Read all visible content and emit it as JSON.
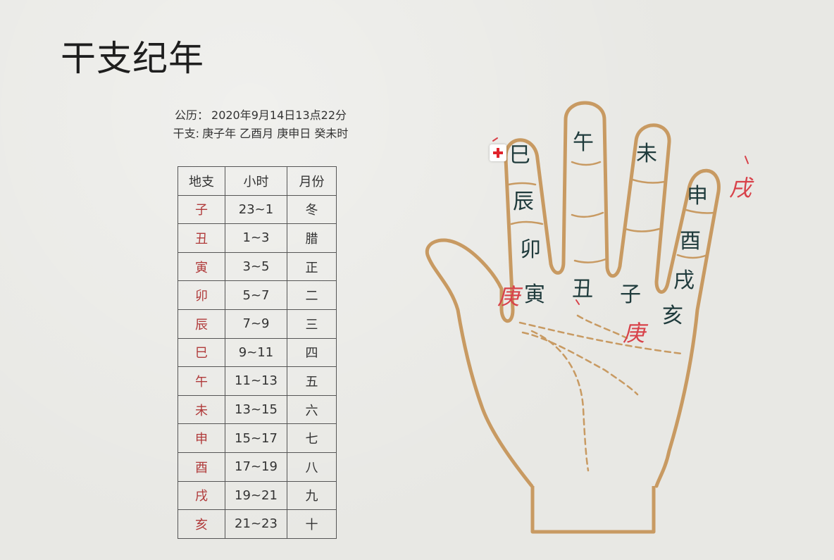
{
  "title": "干支纪年",
  "info": {
    "solar_label": "公历：",
    "solar_value": "2020年9月14日13点22分",
    "ganzhi_label": "干支:",
    "ganzhi_value": "庚子年 乙酉月 庚申日 癸未时"
  },
  "table": {
    "headers": [
      "地支",
      "小时",
      "月份"
    ],
    "rows": [
      {
        "zhi": "子",
        "hours": "23~1",
        "month": "冬"
      },
      {
        "zhi": "丑",
        "hours": "1~3",
        "month": "腊"
      },
      {
        "zhi": "寅",
        "hours": "3~5",
        "month": "正"
      },
      {
        "zhi": "卯",
        "hours": "5~7",
        "month": "二"
      },
      {
        "zhi": "辰",
        "hours": "7~9",
        "month": "三"
      },
      {
        "zhi": "巳",
        "hours": "9~11",
        "month": "四"
      },
      {
        "zhi": "午",
        "hours": "11~13",
        "month": "五"
      },
      {
        "zhi": "未",
        "hours": "13~15",
        "month": "六"
      },
      {
        "zhi": "申",
        "hours": "15~17",
        "month": "七"
      },
      {
        "zhi": "酉",
        "hours": "17~19",
        "month": "八"
      },
      {
        "zhi": "戌",
        "hours": "19~21",
        "month": "九"
      },
      {
        "zhi": "亥",
        "hours": "21~23",
        "month": "十"
      }
    ]
  },
  "hand": {
    "branches": {
      "si": "巳",
      "chen": "辰",
      "mao": "卯",
      "yin": "寅",
      "wu": "午",
      "chou": "丑",
      "wei": "未",
      "zi": "子",
      "shen": "申",
      "you": "酉",
      "xu": "戌",
      "hai": "亥"
    },
    "notes": {
      "xu_note": "戌",
      "geng_left": "庚",
      "geng_center": "庚"
    },
    "colors": {
      "outline": "#c89a62",
      "glyph": "#1f3b3c",
      "note": "#d8424a"
    }
  }
}
